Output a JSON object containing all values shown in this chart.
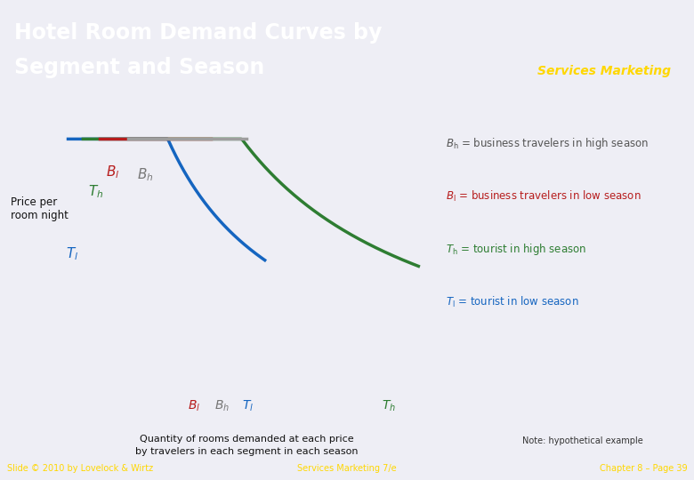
{
  "title_line1": "Hotel Room Demand Curves by",
  "title_line2": "Segment and Season",
  "title_bg_color": "#2E3A8C",
  "title_text_color": "#FFFFFF",
  "footer_bg_color": "#1A237E",
  "footer_text_color": "#FFD700",
  "footer_left": "Slide © 2010 by Lovelock & Wirtz",
  "footer_center": "Services Marketing 7/e",
  "footer_right": "Chapter 8 – Page 39",
  "watermark_text": "Services Marketing",
  "ylabel": "Price per\nroom night",
  "xlabel_line1": "Quantity of rooms demanded at each price",
  "xlabel_line2": "by travelers in each segment in each season",
  "note": "Note: hypothetical example",
  "bg_color": "#EEEEF5",
  "legend_items": [
    {
      "symbol": "B_h",
      "rest": "= business travelers in high season",
      "color": "#555555"
    },
    {
      "symbol": "B_l",
      "rest": "= business travelers in low season",
      "color": "#B71C1C"
    },
    {
      "symbol": "T_h",
      "rest": "= tourist in high season",
      "color": "#2E7D32"
    },
    {
      "symbol": "T_l",
      "rest": "= tourist in low season",
      "color": "#1565C0"
    }
  ]
}
